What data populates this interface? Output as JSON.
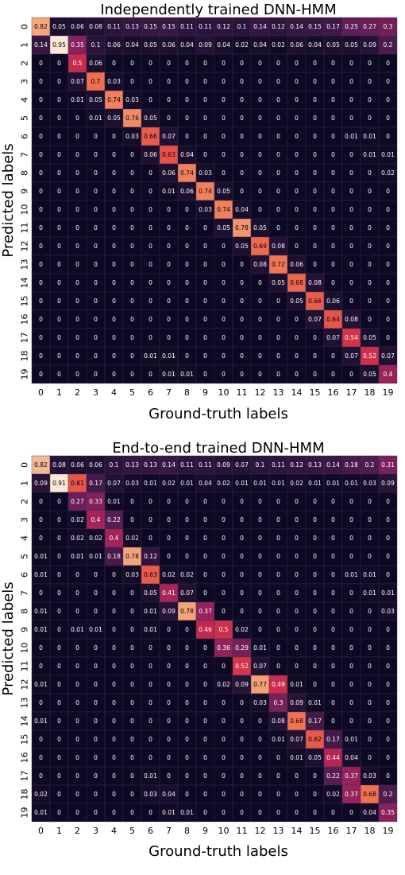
{
  "chart_data": [
    {
      "type": "heatmap",
      "title": "Independently trained DNN-HMM",
      "xlabel": "Ground-truth labels",
      "ylabel": "Predicted labels",
      "x_ticks": [
        "0",
        "1",
        "2",
        "3",
        "4",
        "5",
        "6",
        "7",
        "8",
        "9",
        "10",
        "11",
        "12",
        "13",
        "14",
        "15",
        "16",
        "17",
        "18",
        "19"
      ],
      "y_ticks": [
        "0",
        "1",
        "2",
        "3",
        "4",
        "5",
        "6",
        "7",
        "8",
        "9",
        "10",
        "11",
        "12",
        "13",
        "14",
        "15",
        "16",
        "17",
        "18",
        "19"
      ],
      "color_scale": "rocket",
      "matrix": [
        [
          0.82,
          0.05,
          0.06,
          0.08,
          0.11,
          0.13,
          0.15,
          0.15,
          0.11,
          0.11,
          0.12,
          0.1,
          0.14,
          0.12,
          0.14,
          0.15,
          0.17,
          0.25,
          0.27,
          0.3
        ],
        [
          0.14,
          0.95,
          0.35,
          0.1,
          0.06,
          0.04,
          0.05,
          0.06,
          0.04,
          0.09,
          0.04,
          0.02,
          0.04,
          0.02,
          0.06,
          0.04,
          0.05,
          0.05,
          0.09,
          0.2
        ],
        [
          0,
          0,
          0.5,
          0.06,
          0,
          0,
          0,
          0,
          0,
          0,
          0,
          0,
          0,
          0,
          0,
          0,
          0,
          0,
          0,
          0
        ],
        [
          0,
          0,
          0.07,
          0.7,
          0.03,
          0,
          0,
          0,
          0,
          0,
          0,
          0,
          0,
          0,
          0,
          0,
          0,
          0,
          0,
          0
        ],
        [
          0,
          0,
          0.01,
          0.05,
          0.74,
          0.03,
          0,
          0,
          0,
          0,
          0,
          0,
          0,
          0,
          0,
          0,
          0,
          0,
          0,
          0
        ],
        [
          0,
          0,
          0,
          0.01,
          0.05,
          0.76,
          0.05,
          0,
          0,
          0,
          0,
          0,
          0,
          0,
          0,
          0,
          0,
          0,
          0,
          0
        ],
        [
          0,
          0,
          0,
          0,
          0,
          0.03,
          0.66,
          0.07,
          0,
          0,
          0,
          0,
          0,
          0,
          0,
          0,
          0,
          0.01,
          0.01,
          0
        ],
        [
          0,
          0,
          0,
          0,
          0,
          0,
          0.06,
          0.63,
          0.04,
          0,
          0,
          0,
          0,
          0,
          0,
          0,
          0,
          0,
          0.01,
          0.01
        ],
        [
          0,
          0,
          0,
          0,
          0,
          0,
          0,
          0.06,
          0.74,
          0.03,
          0,
          0,
          0,
          0,
          0,
          0,
          0,
          0,
          0,
          0.02
        ],
        [
          0,
          0,
          0,
          0,
          0,
          0,
          0,
          0.01,
          0.06,
          0.74,
          0.05,
          0,
          0,
          0,
          0,
          0,
          0,
          0,
          0,
          0
        ],
        [
          0,
          0,
          0,
          0,
          0,
          0,
          0,
          0,
          0,
          0.03,
          0.74,
          0.04,
          0,
          0,
          0,
          0,
          0,
          0,
          0,
          0
        ],
        [
          0,
          0,
          0,
          0,
          0,
          0,
          0,
          0,
          0,
          0,
          0.05,
          0.78,
          0.05,
          0,
          0,
          0,
          0,
          0,
          0,
          0
        ],
        [
          0,
          0,
          0,
          0,
          0,
          0,
          0,
          0,
          0,
          0,
          0,
          0.05,
          0.69,
          0.08,
          0,
          0,
          0,
          0,
          0,
          0
        ],
        [
          0,
          0,
          0,
          0,
          0,
          0,
          0,
          0,
          0,
          0,
          0,
          0,
          0.08,
          0.72,
          0.06,
          0,
          0,
          0,
          0,
          0
        ],
        [
          0,
          0,
          0,
          0,
          0,
          0,
          0,
          0,
          0,
          0,
          0,
          0,
          0,
          0.05,
          0.68,
          0.08,
          0,
          0,
          0,
          0
        ],
        [
          0,
          0,
          0,
          0,
          0,
          0,
          0,
          0,
          0,
          0,
          0,
          0,
          0,
          0,
          0.05,
          0.66,
          0.06,
          0,
          0,
          0
        ],
        [
          0,
          0,
          0,
          0,
          0,
          0,
          0,
          0,
          0,
          0,
          0,
          0,
          0,
          0,
          0,
          0.07,
          0.64,
          0.08,
          0,
          0
        ],
        [
          0,
          0,
          0,
          0,
          0,
          0,
          0,
          0,
          0,
          0,
          0,
          0,
          0,
          0,
          0,
          0,
          0.07,
          0.54,
          0.05,
          0
        ],
        [
          0,
          0,
          0,
          0,
          0,
          0,
          0.01,
          0.01,
          0,
          0,
          0,
          0,
          0,
          0,
          0,
          0,
          0,
          0.07,
          0.52,
          0.07
        ],
        [
          0,
          0,
          0,
          0,
          0,
          0,
          0,
          0.01,
          0.01,
          0,
          0,
          0,
          0,
          0,
          0,
          0,
          0,
          0,
          0.05,
          0.4
        ]
      ]
    },
    {
      "type": "heatmap",
      "title": "End-to-end trained DNN-HMM",
      "xlabel": "Ground-truth labels",
      "ylabel": "Predicted labels",
      "x_ticks": [
        "0",
        "1",
        "2",
        "3",
        "4",
        "5",
        "6",
        "7",
        "8",
        "9",
        "10",
        "11",
        "12",
        "13",
        "14",
        "15",
        "16",
        "17",
        "18",
        "19"
      ],
      "y_ticks": [
        "0",
        "1",
        "2",
        "3",
        "4",
        "5",
        "6",
        "7",
        "8",
        "9",
        "10",
        "11",
        "12",
        "13",
        "14",
        "15",
        "16",
        "17",
        "18",
        "19"
      ],
      "color_scale": "rocket",
      "matrix": [
        [
          0.82,
          0.08,
          0.06,
          0.06,
          0.1,
          0.13,
          0.13,
          0.14,
          0.11,
          0.11,
          0.09,
          0.07,
          0.1,
          0.11,
          0.12,
          0.13,
          0.14,
          0.18,
          0.2,
          0.31
        ],
        [
          0.09,
          0.91,
          0.61,
          0.17,
          0.07,
          0.03,
          0.01,
          0.02,
          0.01,
          0.04,
          0.02,
          0.01,
          0.01,
          0.01,
          0.02,
          0.01,
          0.01,
          0.01,
          0.03,
          0.09
        ],
        [
          0,
          0,
          0.27,
          0.33,
          0.01,
          0,
          0,
          0,
          0,
          0,
          0,
          0,
          0,
          0,
          0,
          0,
          0,
          0,
          0,
          0
        ],
        [
          0,
          0,
          0.02,
          0.4,
          0.22,
          0,
          0,
          0,
          0,
          0,
          0,
          0,
          0,
          0,
          0,
          0,
          0,
          0,
          0,
          0
        ],
        [
          0,
          0,
          0.02,
          0.02,
          0.4,
          0.02,
          0,
          0,
          0,
          0,
          0,
          0,
          0,
          0,
          0,
          0,
          0,
          0,
          0,
          0
        ],
        [
          0.01,
          0,
          0.01,
          0.01,
          0.18,
          0.78,
          0.12,
          0,
          0,
          0,
          0,
          0,
          0,
          0,
          0,
          0,
          0,
          0,
          0,
          0
        ],
        [
          0.01,
          0,
          0,
          0,
          0,
          0.03,
          0.63,
          0.02,
          0.02,
          0,
          0,
          0,
          0,
          0,
          0,
          0,
          0,
          0.01,
          0.01,
          0
        ],
        [
          0,
          0,
          0,
          0,
          0,
          0,
          0.05,
          0.41,
          0.07,
          0,
          0,
          0,
          0,
          0,
          0,
          0,
          0,
          0,
          0.01,
          0.01
        ],
        [
          0.01,
          0,
          0,
          0,
          0,
          0,
          0.01,
          0.09,
          0.78,
          0.37,
          0,
          0,
          0,
          0,
          0,
          0,
          0,
          0,
          0,
          0.03
        ],
        [
          0.01,
          0,
          0.01,
          0.01,
          0,
          0,
          0.01,
          0,
          0,
          0.46,
          0.5,
          0.02,
          0,
          0,
          0,
          0,
          0,
          0,
          0,
          0
        ],
        [
          0,
          0,
          0,
          0,
          0,
          0,
          0,
          0,
          0,
          0,
          0.36,
          0.29,
          0.01,
          0,
          0,
          0,
          0,
          0,
          0,
          0
        ],
        [
          0,
          0,
          0,
          0,
          0,
          0,
          0,
          0,
          0,
          0,
          0,
          0.52,
          0.07,
          0,
          0,
          0,
          0,
          0,
          0,
          0
        ],
        [
          0.01,
          0,
          0,
          0,
          0,
          0,
          0,
          0,
          0,
          0,
          0.02,
          0.09,
          0.77,
          0.49,
          0.01,
          0,
          0,
          0,
          0,
          0
        ],
        [
          0,
          0,
          0,
          0,
          0,
          0,
          0,
          0,
          0,
          0,
          0,
          0,
          0.03,
          0.3,
          0.09,
          0.01,
          0,
          0,
          0,
          0
        ],
        [
          0.01,
          0,
          0,
          0,
          0,
          0,
          0,
          0,
          0,
          0,
          0,
          0,
          0,
          0.08,
          0.68,
          0.17,
          0,
          0,
          0,
          0
        ],
        [
          0,
          0,
          0,
          0,
          0,
          0,
          0,
          0,
          0,
          0,
          0,
          0,
          0,
          0.01,
          0.07,
          0.62,
          0.17,
          0.01,
          0,
          0
        ],
        [
          0,
          0,
          0,
          0,
          0,
          0,
          0,
          0,
          0,
          0,
          0,
          0,
          0,
          0,
          0.01,
          0.05,
          0.44,
          0.04,
          0,
          0
        ],
        [
          0,
          0,
          0,
          0,
          0,
          0,
          0.01,
          0,
          0,
          0,
          0,
          0,
          0,
          0,
          0,
          0,
          0.22,
          0.37,
          0.03,
          0
        ],
        [
          0.02,
          0,
          0,
          0,
          0,
          0,
          0.03,
          0.04,
          0,
          0,
          0,
          0,
          0,
          0,
          0,
          0,
          0.02,
          0.37,
          0.68,
          0.2
        ],
        [
          0.01,
          0,
          0,
          0,
          0,
          0,
          0,
          0.01,
          0.01,
          0,
          0,
          0,
          0,
          0,
          0,
          0,
          0,
          0,
          0.04,
          0.35
        ]
      ]
    }
  ]
}
